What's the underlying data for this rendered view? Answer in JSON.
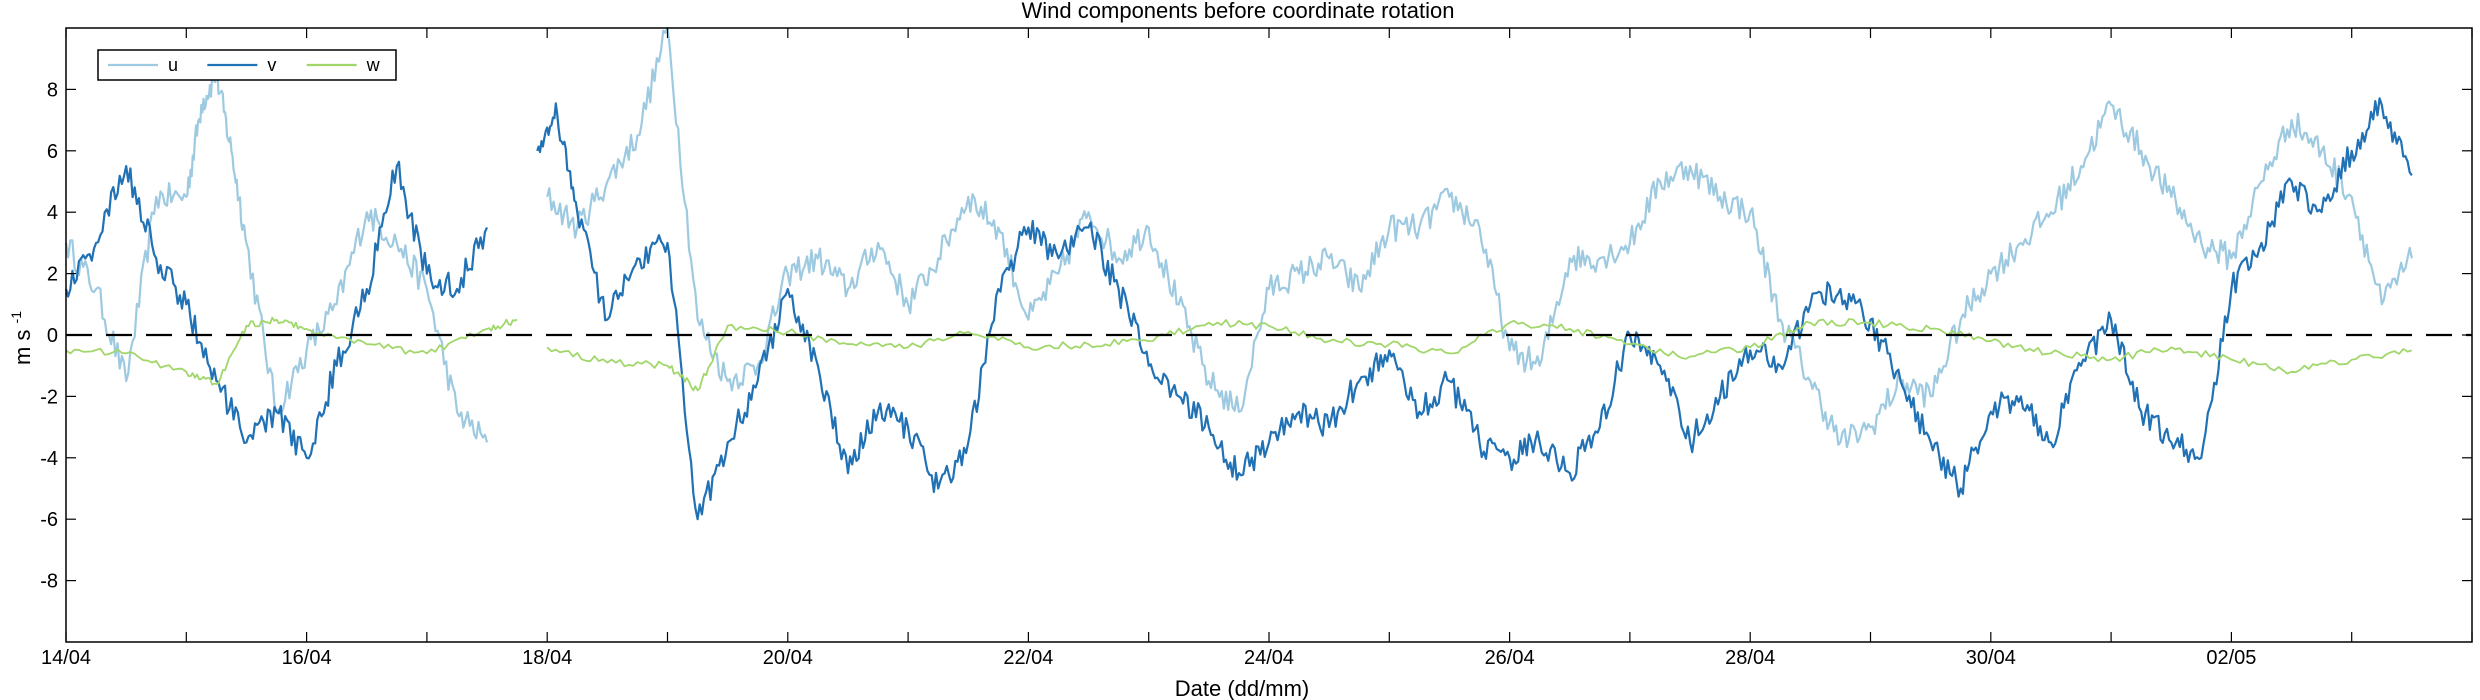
{
  "chart_data": {
    "type": "line",
    "title": "Wind components before coordinate rotation",
    "xlabel": "Date (dd/mm)",
    "ylabel_main": "m s",
    "ylabel_sup": "-1",
    "xlim": [
      "2015-04-14",
      "2015-05-04"
    ],
    "ylim": [
      -10,
      10
    ],
    "x_ticks": [
      {
        "date": "2015-04-14",
        "label": "14/04"
      },
      {
        "date": "2015-04-16",
        "label": "16/04"
      },
      {
        "date": "2015-04-18",
        "label": "18/04"
      },
      {
        "date": "2015-04-20",
        "label": "20/04"
      },
      {
        "date": "2015-04-22",
        "label": "22/04"
      },
      {
        "date": "2015-04-24",
        "label": "24/04"
      },
      {
        "date": "2015-04-26",
        "label": "26/04"
      },
      {
        "date": "2015-04-28",
        "label": "28/04"
      },
      {
        "date": "2015-04-30",
        "label": "30/04"
      },
      {
        "date": "2015-05-02",
        "label": "02/05"
      }
    ],
    "y_ticks": [
      {
        "value": -8,
        "label": "-8"
      },
      {
        "value": -6,
        "label": "-6"
      },
      {
        "value": -4,
        "label": "-4"
      },
      {
        "value": -2,
        "label": "-2"
      },
      {
        "value": 0,
        "label": "0"
      },
      {
        "value": 2,
        "label": "2"
      },
      {
        "value": 4,
        "label": "4"
      },
      {
        "value": 6,
        "label": "6"
      },
      {
        "value": 8,
        "label": "8"
      }
    ],
    "reference_line": {
      "y": 0,
      "style": "dashed",
      "color": "#000000"
    },
    "legend": {
      "placement": "top-left",
      "entries": [
        "u",
        "v",
        "w"
      ]
    },
    "grid": false,
    "series": [
      {
        "name": "u",
        "color": "#9ecae1",
        "points": [
          [
            "2015-04-14T00:00",
            3.0
          ],
          [
            "2015-04-14T06:00",
            1.5
          ],
          [
            "2015-04-14T12:00",
            -1.5
          ],
          [
            "2015-04-14T18:00",
            4.5
          ],
          [
            "2015-04-15T00:00",
            4.5
          ],
          [
            "2015-04-15T03:00",
            7.5
          ],
          [
            "2015-04-15T06:00",
            8.5
          ],
          [
            "2015-04-15T09:00",
            6.0
          ],
          [
            "2015-04-15T12:00",
            3.0
          ],
          [
            "2015-04-15T18:00",
            -2.5
          ],
          [
            "2015-04-16T00:00",
            -0.5
          ],
          [
            "2015-04-16T06:00",
            1.0
          ],
          [
            "2015-04-16T12:00",
            4.0
          ],
          [
            "2015-04-16T18:00",
            3.0
          ],
          [
            "2015-04-17T00:00",
            1.5
          ],
          [
            "2015-04-17T06:00",
            -2.5
          ],
          [
            "2015-04-17T12:00",
            -3.5
          ],
          [
            "2015-04-17T18:00",
            null
          ],
          [
            "2015-04-18T00:00",
            4.5
          ],
          [
            "2015-04-18T06:00",
            3.5
          ],
          [
            "2015-04-18T12:00",
            5.0
          ],
          [
            "2015-04-18T18:00",
            6.5
          ],
          [
            "2015-04-19T00:00",
            10.0
          ],
          [
            "2015-04-19T06:00",
            0.5
          ],
          [
            "2015-04-19T12:00",
            -1.5
          ],
          [
            "2015-04-19T18:00",
            -1.0
          ],
          [
            "2015-04-20T00:00",
            2.0
          ],
          [
            "2015-04-20T06:00",
            2.5
          ],
          [
            "2015-04-20T12:00",
            1.5
          ],
          [
            "2015-04-20T18:00",
            3.0
          ],
          [
            "2015-04-21T00:00",
            1.0
          ],
          [
            "2015-04-21T06:00",
            2.5
          ],
          [
            "2015-04-21T12:00",
            4.5
          ],
          [
            "2015-04-21T18:00",
            3.5
          ],
          [
            "2015-04-22T00:00",
            0.5
          ],
          [
            "2015-04-22T06:00",
            2.0
          ],
          [
            "2015-04-22T12:00",
            4.0
          ],
          [
            "2015-04-22T18:00",
            2.5
          ],
          [
            "2015-04-23T00:00",
            3.5
          ],
          [
            "2015-04-23T06:00",
            1.0
          ],
          [
            "2015-04-23T12:00",
            -1.5
          ],
          [
            "2015-04-23T18:00",
            -2.5
          ],
          [
            "2015-04-24T00:00",
            1.5
          ],
          [
            "2015-04-24T06:00",
            2.0
          ],
          [
            "2015-04-24T12:00",
            2.5
          ],
          [
            "2015-04-24T18:00",
            1.5
          ],
          [
            "2015-04-25T00:00",
            3.5
          ],
          [
            "2015-04-25T06:00",
            3.5
          ],
          [
            "2015-04-25T12:00",
            4.5
          ],
          [
            "2015-04-25T18:00",
            3.5
          ],
          [
            "2015-04-26T00:00",
            -0.5
          ],
          [
            "2015-04-26T06:00",
            -1.0
          ],
          [
            "2015-04-26T12:00",
            2.5
          ],
          [
            "2015-04-26T18:00",
            2.5
          ],
          [
            "2015-04-27T00:00",
            3.0
          ],
          [
            "2015-04-27T06:00",
            5.0
          ],
          [
            "2015-04-27T12:00",
            5.5
          ],
          [
            "2015-04-27T18:00",
            4.5
          ],
          [
            "2015-04-28T00:00",
            4.0
          ],
          [
            "2015-04-28T06:00",
            0.5
          ],
          [
            "2015-04-28T12:00",
            -1.5
          ],
          [
            "2015-04-28T18:00",
            -3.5
          ],
          [
            "2015-04-29T00:00",
            -3.0
          ],
          [
            "2015-04-29T06:00",
            -1.5
          ],
          [
            "2015-04-29T12:00",
            -2.0
          ],
          [
            "2015-04-29T18:00",
            0.5
          ],
          [
            "2015-04-30T00:00",
            2.0
          ],
          [
            "2015-04-30T06:00",
            3.0
          ],
          [
            "2015-04-30T12:00",
            4.0
          ],
          [
            "2015-04-30T18:00",
            5.5
          ],
          [
            "2015-05-01T00:00",
            7.5
          ],
          [
            "2015-05-01T06:00",
            6.0
          ],
          [
            "2015-05-01T12:00",
            4.5
          ],
          [
            "2015-05-01T18:00",
            3.0
          ],
          [
            "2015-05-02T00:00",
            2.5
          ],
          [
            "2015-05-02T06:00",
            5.0
          ],
          [
            "2015-05-02T12:00",
            7.0
          ],
          [
            "2015-05-02T18:00",
            6.0
          ],
          [
            "2015-05-03T00:00",
            4.5
          ],
          [
            "2015-05-03T06:00",
            1.0
          ],
          [
            "2015-05-03T12:00",
            2.5
          ]
        ]
      },
      {
        "name": "v",
        "color": "#2171b5",
        "points": [
          [
            "2015-04-14T00:00",
            1.5
          ],
          [
            "2015-04-14T06:00",
            3.0
          ],
          [
            "2015-04-14T12:00",
            5.5
          ],
          [
            "2015-04-14T18:00",
            2.5
          ],
          [
            "2015-04-15T00:00",
            1.0
          ],
          [
            "2015-04-15T06:00",
            -1.5
          ],
          [
            "2015-04-15T12:00",
            -3.5
          ],
          [
            "2015-04-15T18:00",
            -2.5
          ],
          [
            "2015-04-16T00:00",
            -4.0
          ],
          [
            "2015-04-16T06:00",
            -1.0
          ],
          [
            "2015-04-16T12:00",
            1.5
          ],
          [
            "2015-04-16T18:00",
            5.5
          ],
          [
            "2015-04-17T00:00",
            2.0
          ],
          [
            "2015-04-17T06:00",
            1.5
          ],
          [
            "2015-04-17T12:00",
            3.5
          ],
          [
            "2015-04-17T18:00",
            null
          ],
          [
            "2015-04-17T22:00",
            6.0
          ],
          [
            "2015-04-18T02:00",
            7.2
          ],
          [
            "2015-04-18T06:00",
            4.0
          ],
          [
            "2015-04-18T12:00",
            0.5
          ],
          [
            "2015-04-18T18:00",
            2.5
          ],
          [
            "2015-04-19T00:00",
            3.0
          ],
          [
            "2015-04-19T06:00",
            -6.0
          ],
          [
            "2015-04-19T12:00",
            -3.5
          ],
          [
            "2015-04-19T18:00",
            -1.5
          ],
          [
            "2015-04-20T00:00",
            1.5
          ],
          [
            "2015-04-20T06:00",
            -1.0
          ],
          [
            "2015-04-20T12:00",
            -4.5
          ],
          [
            "2015-04-20T18:00",
            -2.5
          ],
          [
            "2015-04-21T00:00",
            -3.0
          ],
          [
            "2015-04-21T06:00",
            -5.0
          ],
          [
            "2015-04-21T12:00",
            -3.5
          ],
          [
            "2015-04-21T18:00",
            1.5
          ],
          [
            "2015-04-22T00:00",
            3.5
          ],
          [
            "2015-04-22T06:00",
            2.5
          ],
          [
            "2015-04-22T12:00",
            3.5
          ],
          [
            "2015-04-22T18:00",
            1.5
          ],
          [
            "2015-04-23T00:00",
            -1.0
          ],
          [
            "2015-04-23T06:00",
            -2.0
          ],
          [
            "2015-04-23T12:00",
            -3.0
          ],
          [
            "2015-04-23T18:00",
            -4.5
          ],
          [
            "2015-04-24T00:00",
            -3.5
          ],
          [
            "2015-04-24T06:00",
            -2.5
          ],
          [
            "2015-04-24T12:00",
            -3.0
          ],
          [
            "2015-04-24T18:00",
            -1.5
          ],
          [
            "2015-04-25T00:00",
            -0.5
          ],
          [
            "2015-04-25T06:00",
            -2.5
          ],
          [
            "2015-04-25T12:00",
            -1.5
          ],
          [
            "2015-04-25T18:00",
            -3.5
          ],
          [
            "2015-04-26T00:00",
            -4.0
          ],
          [
            "2015-04-26T06:00",
            -3.5
          ],
          [
            "2015-04-26T12:00",
            -4.5
          ],
          [
            "2015-04-26T18:00",
            -3.0
          ],
          [
            "2015-04-27T00:00",
            0.0
          ],
          [
            "2015-04-27T06:00",
            -1.0
          ],
          [
            "2015-04-27T12:00",
            -3.5
          ],
          [
            "2015-04-27T18:00",
            -2.0
          ],
          [
            "2015-04-28T00:00",
            -0.5
          ],
          [
            "2015-04-28T06:00",
            -1.0
          ],
          [
            "2015-04-28T12:00",
            1.0
          ],
          [
            "2015-04-28T18:00",
            1.5
          ],
          [
            "2015-04-29T00:00",
            0.5
          ],
          [
            "2015-04-29T06:00",
            -1.5
          ],
          [
            "2015-04-29T12:00",
            -3.5
          ],
          [
            "2015-04-29T18:00",
            -5.0
          ],
          [
            "2015-04-30T00:00",
            -2.5
          ],
          [
            "2015-04-30T06:00",
            -2.0
          ],
          [
            "2015-04-30T12:00",
            -3.5
          ],
          [
            "2015-04-30T18:00",
            -1.0
          ],
          [
            "2015-05-01T00:00",
            0.5
          ],
          [
            "2015-05-01T06:00",
            -2.5
          ],
          [
            "2015-05-01T12:00",
            -3.5
          ],
          [
            "2015-05-01T18:00",
            -4.0
          ],
          [
            "2015-05-02T00:00",
            1.5
          ],
          [
            "2015-05-02T06:00",
            3.0
          ],
          [
            "2015-05-02T12:00",
            5.0
          ],
          [
            "2015-05-02T18:00",
            4.0
          ],
          [
            "2015-05-03T00:00",
            6.0
          ],
          [
            "2015-05-03T06:00",
            7.5
          ],
          [
            "2015-05-03T12:00",
            5.2
          ]
        ]
      },
      {
        "name": "w",
        "color": "#a1d76a",
        "points": [
          [
            "2015-04-14T00:00",
            -0.5
          ],
          [
            "2015-04-14T12:00",
            -0.6
          ],
          [
            "2015-04-15T00:00",
            -1.2
          ],
          [
            "2015-04-15T06:00",
            -1.6
          ],
          [
            "2015-04-15T12:00",
            0.3
          ],
          [
            "2015-04-15T18:00",
            0.5
          ],
          [
            "2015-04-16T00:00",
            0.2
          ],
          [
            "2015-04-16T12:00",
            -0.3
          ],
          [
            "2015-04-17T00:00",
            -0.6
          ],
          [
            "2015-04-17T12:00",
            0.2
          ],
          [
            "2015-04-17T18:00",
            0.5
          ],
          [
            "2015-04-17T22:00",
            null
          ],
          [
            "2015-04-18T00:00",
            -0.4
          ],
          [
            "2015-04-18T12:00",
            -0.9
          ],
          [
            "2015-04-19T00:00",
            -1.0
          ],
          [
            "2015-04-19T06:00",
            -1.8
          ],
          [
            "2015-04-19T12:00",
            0.3
          ],
          [
            "2015-04-20T00:00",
            0.1
          ],
          [
            "2015-04-20T12:00",
            -0.3
          ],
          [
            "2015-04-21T00:00",
            -0.4
          ],
          [
            "2015-04-21T12:00",
            0.1
          ],
          [
            "2015-04-22T00:00",
            -0.4
          ],
          [
            "2015-04-22T12:00",
            -0.3
          ],
          [
            "2015-04-23T00:00",
            -0.2
          ],
          [
            "2015-04-23T12:00",
            0.4
          ],
          [
            "2015-04-24T00:00",
            0.3
          ],
          [
            "2015-04-24T12:00",
            -0.2
          ],
          [
            "2015-04-25T00:00",
            -0.3
          ],
          [
            "2015-04-25T12:00",
            -0.6
          ],
          [
            "2015-04-26T00:00",
            0.4
          ],
          [
            "2015-04-26T12:00",
            0.2
          ],
          [
            "2015-04-27T00:00",
            -0.3
          ],
          [
            "2015-04-27T12:00",
            -0.7
          ],
          [
            "2015-04-28T00:00",
            -0.4
          ],
          [
            "2015-04-28T12:00",
            0.4
          ],
          [
            "2015-04-29T00:00",
            0.4
          ],
          [
            "2015-04-29T12:00",
            0.2
          ],
          [
            "2015-04-30T00:00",
            -0.2
          ],
          [
            "2015-04-30T12:00",
            -0.6
          ],
          [
            "2015-05-01T00:00",
            -0.8
          ],
          [
            "2015-05-01T12:00",
            -0.4
          ],
          [
            "2015-05-02T00:00",
            -0.8
          ],
          [
            "2015-05-02T12:00",
            -1.2
          ],
          [
            "2015-05-03T00:00",
            -0.8
          ],
          [
            "2015-05-03T12:00",
            -0.5
          ]
        ]
      }
    ]
  }
}
